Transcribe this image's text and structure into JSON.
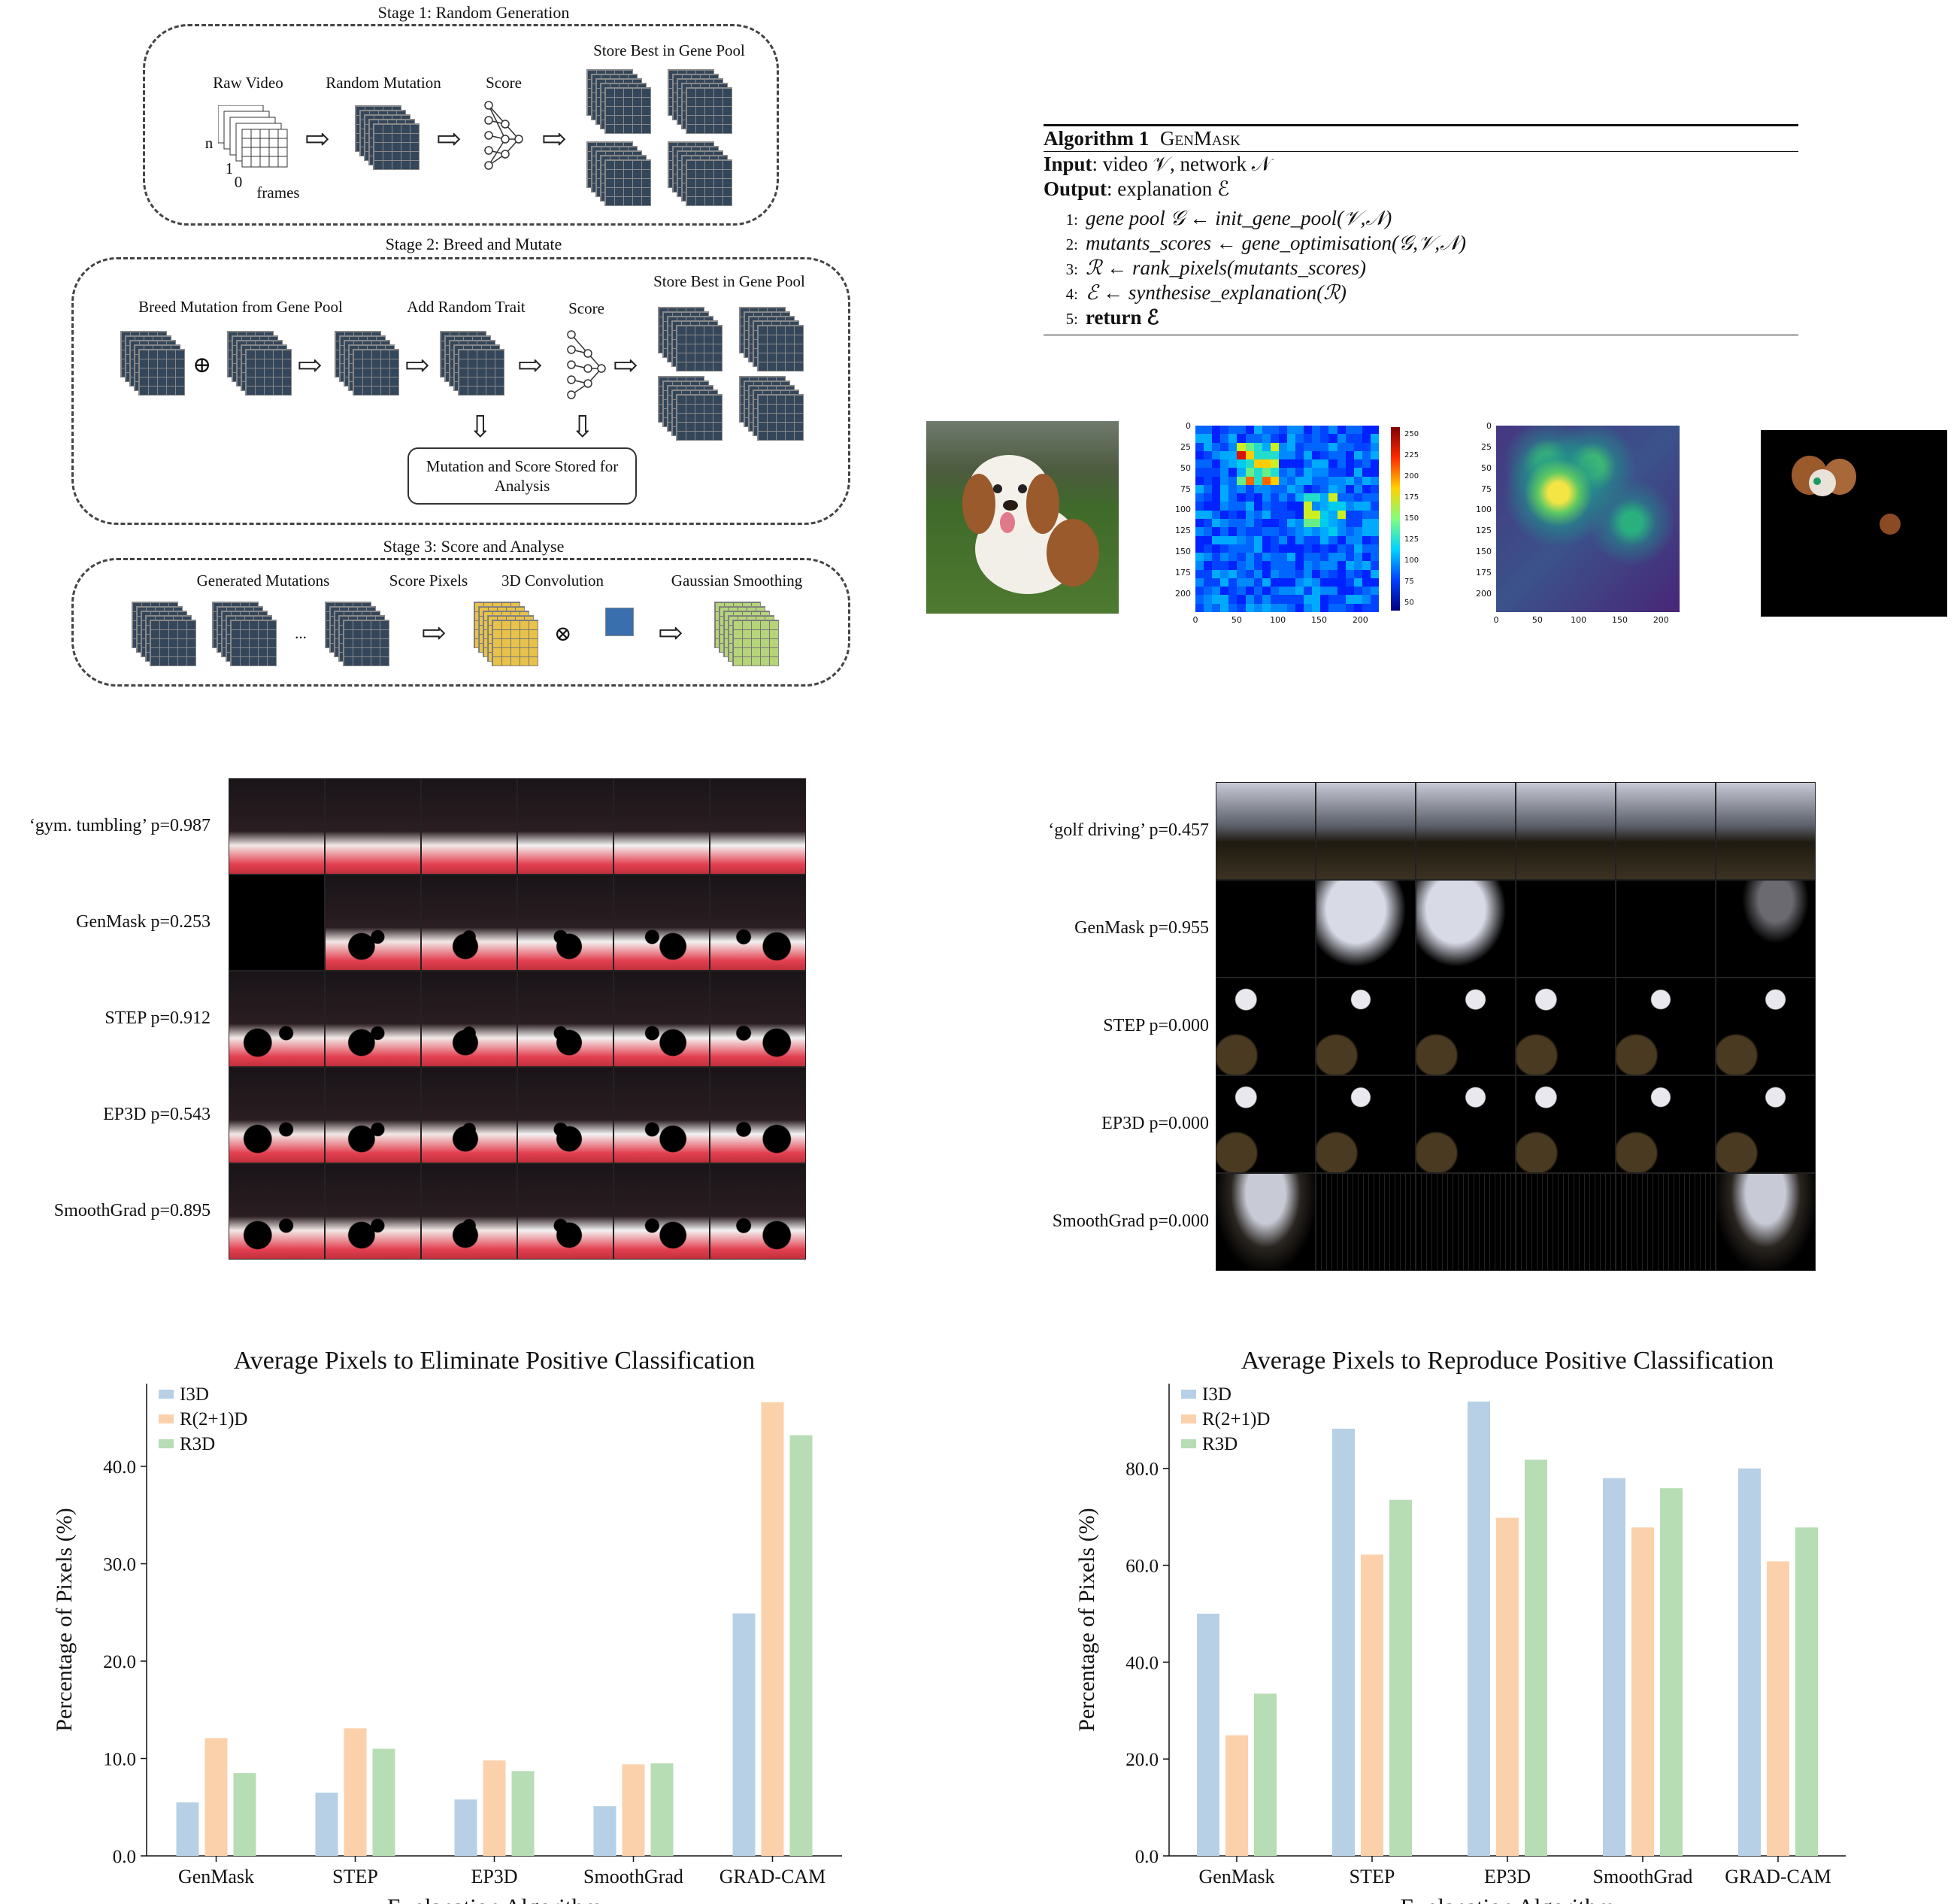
{
  "pipeline": {
    "stage1": {
      "title": "Stage 1: Random Generation",
      "raw_video": "Raw Video",
      "random_mutation": "Random Mutation",
      "score": "Score",
      "store_best": "Store Best in Gene Pool",
      "axis_n": "n",
      "axis_1": "1",
      "axis_0": "0",
      "frames": "frames"
    },
    "stage2": {
      "title": "Stage 2: Breed and Mutate",
      "breed": "Breed Mutation from Gene Pool",
      "add_trait": "Add Random Trait",
      "score": "Score",
      "store_best": "Store Best in Gene Pool",
      "stored_line1": "Mutation and Score Stored for",
      "stored_line2": "Analysis"
    },
    "stage3": {
      "title": "Stage 3: Score and Analyse",
      "generated": "Generated Mutations",
      "score_pixels": "Score Pixels",
      "conv": "3D Convolution",
      "smoothing": "Gaussian Smoothing",
      "ellipsis": "..."
    }
  },
  "algorithm": {
    "title_bold": "Algorithm 1",
    "title_name": "GenMask",
    "input_label": "Input",
    "input_text": ": video 𝒱, network 𝒩",
    "output_label": "Output",
    "output_text": ": explanation ℰ",
    "lines": [
      {
        "num": "1:",
        "text": "gene pool 𝒢 ← init_gene_pool(𝒱,𝒩)"
      },
      {
        "num": "2:",
        "text": "mutants_scores ← gene_optimisation(𝒢,𝒱,𝒩)"
      },
      {
        "num": "3:",
        "text": "ℛ ← rank_pixels(mutants_scores)"
      },
      {
        "num": "4:",
        "text": "ℰ ← synthesise_explanation(ℛ)"
      },
      {
        "num": "5:",
        "text": "return ℰ"
      }
    ]
  },
  "heatmap_axes": {
    "y_ticks": [
      "0",
      "25",
      "50",
      "75",
      "100",
      "125",
      "150",
      "175",
      "200"
    ],
    "x_ticks": [
      "0",
      "50",
      "100",
      "150",
      "200"
    ],
    "colorbar_ticks": [
      "250",
      "225",
      "200",
      "175",
      "150",
      "125",
      "100",
      "75",
      "50"
    ]
  },
  "gym_rows": [
    "‘gym. tumbling’ p=0.987",
    "GenMask p=0.253",
    "STEP p=0.912",
    "EP3D p=0.543",
    "SmoothGrad p=0.895"
  ],
  "golf_rows": [
    "‘golf driving’ p=0.457",
    "GenMask p=0.955",
    "STEP p=0.000",
    "EP3D p=0.000",
    "SmoothGrad p=0.000"
  ],
  "chart_data": [
    {
      "type": "bar",
      "title": "Average Pixels to Eliminate Positive Classification",
      "xlabel": "Explanation Algorithm",
      "ylabel": "Percentage of Pixels (%)",
      "categories": [
        "GenMask",
        "STEP",
        "EP3D",
        "SmoothGrad",
        "GRAD-CAM"
      ],
      "ylim": [
        0,
        48.5
      ],
      "yticks": [
        "0.0",
        "10.0",
        "20.0",
        "30.0",
        "40.0"
      ],
      "legend": "top-left",
      "grid": false,
      "series": [
        {
          "name": "I3D",
          "color": "#b7d0e5",
          "values": [
            5.5,
            6.5,
            5.8,
            5.1,
            24.9
          ]
        },
        {
          "name": "R(2+1)D",
          "color": "#fbd1ac",
          "values": [
            12.1,
            13.1,
            9.8,
            9.4,
            46.6
          ]
        },
        {
          "name": "R3D",
          "color": "#b7ddb4",
          "values": [
            8.5,
            11.0,
            8.7,
            9.5,
            43.2
          ]
        }
      ]
    },
    {
      "type": "bar",
      "title": "Average Pixels to Reproduce Positive Classification",
      "xlabel": "Explanation Algorithm",
      "ylabel": "Percentage of Pixels (%)",
      "categories": [
        "GenMask",
        "STEP",
        "EP3D",
        "SmoothGrad",
        "GRAD-CAM"
      ],
      "ylim": [
        0,
        97.5
      ],
      "yticks": [
        "0.0",
        "20.0",
        "40.0",
        "60.0",
        "80.0"
      ],
      "legend": "top-left",
      "grid": false,
      "series": [
        {
          "name": "I3D",
          "color": "#b7d0e5",
          "values": [
            50.0,
            88.2,
            93.8,
            78.0,
            80.0
          ]
        },
        {
          "name": "R(2+1)D",
          "color": "#fbd1ac",
          "values": [
            24.9,
            62.2,
            69.8,
            67.8,
            60.8
          ]
        },
        {
          "name": "R3D",
          "color": "#b7ddb4",
          "values": [
            33.5,
            73.5,
            81.8,
            75.9,
            67.8
          ]
        }
      ]
    }
  ]
}
